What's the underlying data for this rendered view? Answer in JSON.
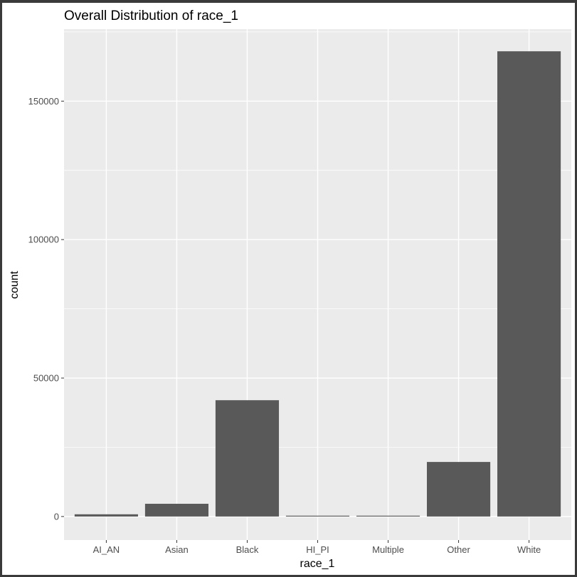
{
  "chart_data": {
    "type": "bar",
    "title": "Overall Distribution of race_1",
    "xlabel": "race_1",
    "ylabel": "count",
    "categories": [
      "AI_AN",
      "Asian",
      "Black",
      "HI_PI",
      "Multiple",
      "Other",
      "White"
    ],
    "values": [
      800,
      4600,
      42000,
      300,
      300,
      19700,
      168000
    ],
    "ylim": [
      -8500,
      176000
    ],
    "yticks": [
      0,
      50000,
      100000,
      150000
    ],
    "ytick_labels": [
      "0",
      "50000",
      "100000",
      "150000"
    ],
    "grid": true,
    "colors": {
      "panel_background": "#ebebeb",
      "grid_major": "#ffffff",
      "bar_fill": "#595959"
    }
  }
}
